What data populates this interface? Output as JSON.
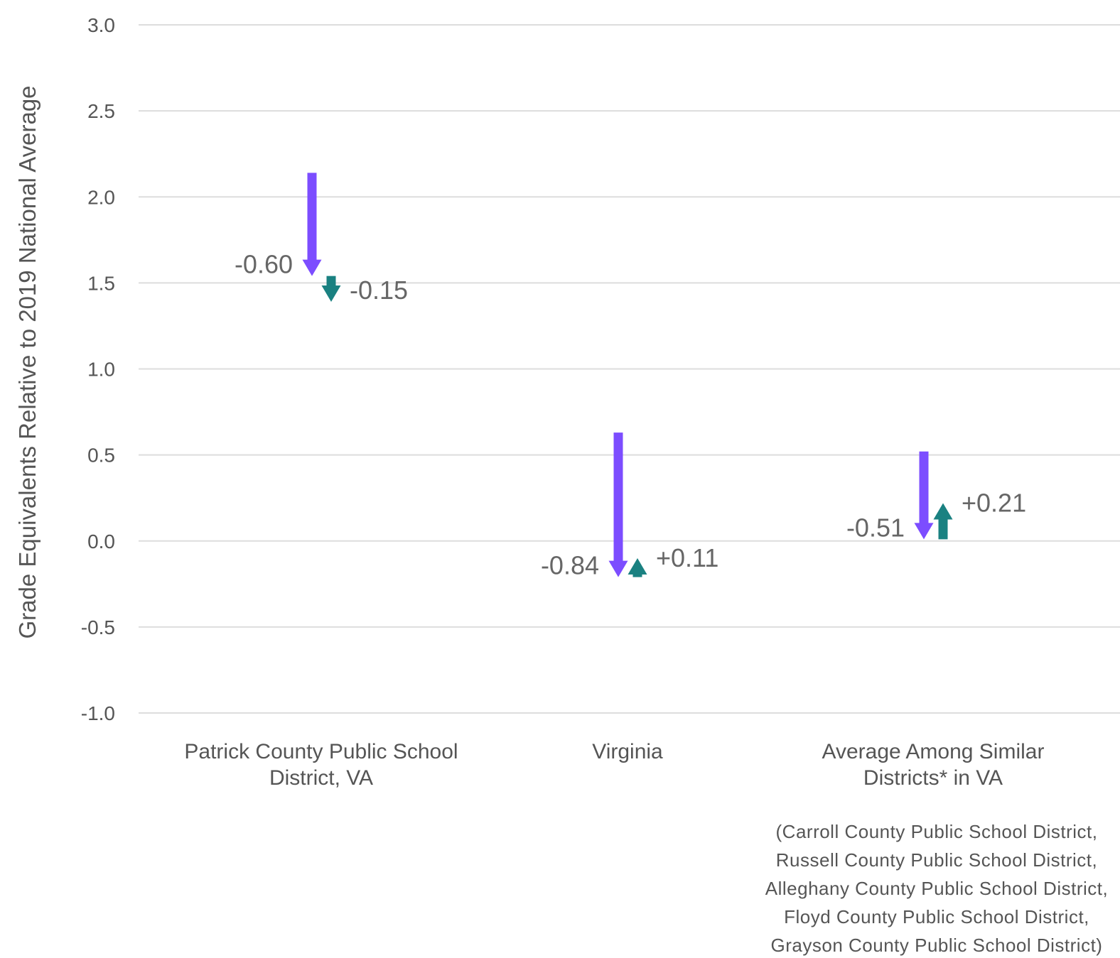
{
  "chart_data": {
    "type": "arrow",
    "ylabel": "Grade Equivalents Relative to 2019 National Average",
    "ylim": [
      -1.0,
      3.0
    ],
    "yticks": [
      "3.0",
      "2.5",
      "2.0",
      "1.5",
      "1.0",
      "0.5",
      "0.0",
      "-0.5",
      "-1.0"
    ],
    "grid": true,
    "categories": [
      {
        "label_lines": [
          "Patrick County Public School",
          "District, VA"
        ],
        "start": 2.14,
        "mid": 1.54,
        "end": 1.39,
        "change1_label": "-0.60",
        "change2_label": "-0.15"
      },
      {
        "label_lines": [
          "Virginia"
        ],
        "start": 0.63,
        "mid": -0.21,
        "end": -0.1,
        "change1_label": "-0.84",
        "change2_label": "+0.11"
      },
      {
        "label_lines": [
          "Average Among Similar",
          "Districts* in VA"
        ],
        "start": 0.52,
        "mid": 0.01,
        "end": 0.22,
        "change1_label": "-0.51",
        "change2_label": "+0.21"
      }
    ],
    "footnote_lines": [
      "(Carroll County Public School District,",
      "Russell County Public School District,",
      "Alleghany County Public School District,",
      "Floyd County Public School District,",
      "Grayson County Public School District)"
    ],
    "colors": {
      "first_change": "#7c4dff",
      "second_change": "#1a8181",
      "grid": "#dddddd",
      "text": "#555555"
    }
  }
}
